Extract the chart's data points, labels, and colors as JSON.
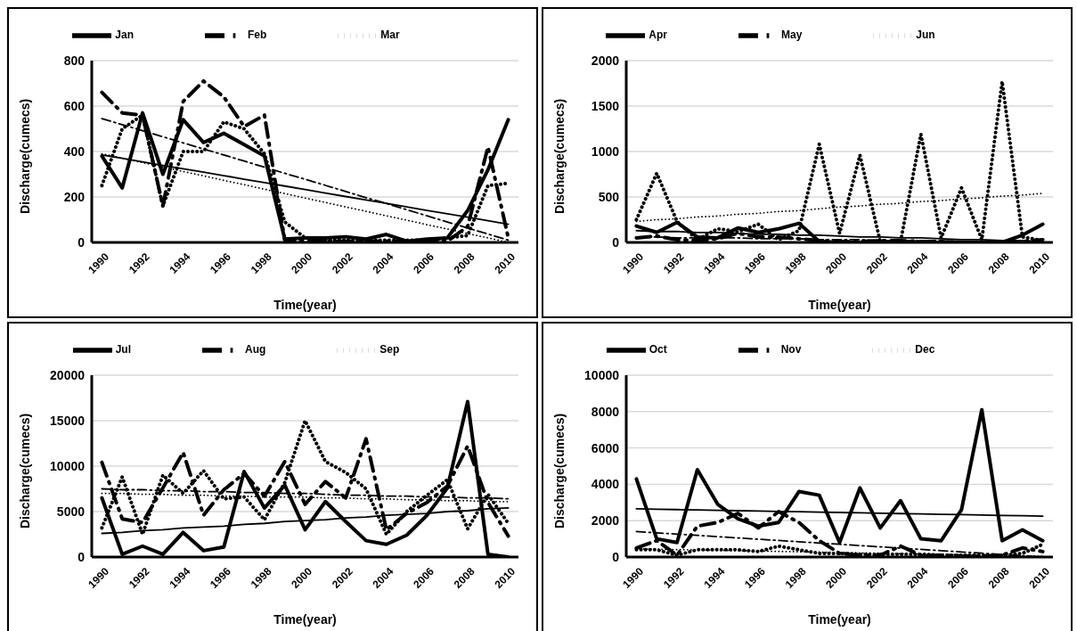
{
  "chart_data": [
    {
      "type": "line",
      "legend": "top",
      "grid": "y",
      "xlabel": "Time(year)",
      "ylabel": "Discharge(cumecs)",
      "xlim": [
        1989.5,
        2010.5
      ],
      "xticks": [
        1990,
        1992,
        1994,
        1996,
        1998,
        2000,
        2002,
        2004,
        2006,
        2008,
        2010
      ],
      "ylim": [
        0,
        800
      ],
      "yticks": [
        0,
        200,
        400,
        600,
        800
      ],
      "x": [
        1990,
        1991,
        1992,
        1993,
        1994,
        1995,
        1996,
        1997,
        1998,
        1999,
        2000,
        2001,
        2002,
        2003,
        2004,
        2005,
        2006,
        2007,
        2008,
        2009,
        2010
      ],
      "series": [
        {
          "name": "Jan",
          "color": "#000000",
          "line_style": "solid",
          "values": [
            380,
            240,
            570,
            300,
            540,
            440,
            480,
            430,
            380,
            15,
            20,
            20,
            25,
            15,
            35,
            5,
            15,
            20,
            140,
            320,
            540
          ]
        },
        {
          "name": "Feb",
          "color": "#000000",
          "line_style": "dashed",
          "values": [
            660,
            570,
            560,
            160,
            620,
            710,
            640,
            510,
            560,
            10,
            5,
            5,
            5,
            5,
            5,
            5,
            5,
            5,
            70,
            420,
            20
          ]
        },
        {
          "name": "Mar",
          "color": "#000000",
          "line_style": "dotted",
          "values": [
            250,
            500,
            560,
            160,
            400,
            400,
            530,
            500,
            390,
            90,
            20,
            10,
            10,
            10,
            10,
            10,
            10,
            20,
            30,
            250,
            260
          ]
        },
        {
          "type": "line",
          "color": "#000000",
          "line_style": "solid",
          "values": [
            385,
            370,
            354,
            339,
            324,
            309,
            294,
            278,
            263,
            248,
            233,
            217,
            202,
            187,
            172,
            156,
            141,
            126,
            111,
            96,
            80
          ]
        },
        {
          "type": "line",
          "color": "#000000",
          "line_style": "dashed",
          "values": [
            545,
            518,
            492,
            465,
            438,
            411,
            385,
            358,
            331,
            304,
            278,
            251,
            224,
            197,
            171,
            144,
            117,
            90,
            63,
            37,
            10
          ]
        },
        {
          "type": "line",
          "color": "#000000",
          "line_style": "dotted",
          "values": [
            390,
            371,
            351,
            332,
            312,
            293,
            273,
            254,
            234,
            215,
            195,
            176,
            156,
            137,
            117,
            98,
            78,
            59,
            39,
            20,
            0
          ]
        }
      ]
    },
    {
      "type": "line",
      "legend": "top",
      "grid": "y",
      "xlabel": "Time(year)",
      "ylabel": "Discharge(cumecs)",
      "xlim": [
        1989.5,
        2010.5
      ],
      "xticks": [
        1990,
        1992,
        1994,
        1996,
        1998,
        2000,
        2002,
        2004,
        2006,
        2008,
        2010
      ],
      "ylim": [
        0,
        2000
      ],
      "yticks": [
        0,
        500,
        1000,
        1500,
        2000
      ],
      "x": [
        1990,
        1991,
        1992,
        1993,
        1994,
        1995,
        1996,
        1997,
        1998,
        1999,
        2000,
        2001,
        2002,
        2003,
        2004,
        2005,
        2006,
        2007,
        2008,
        2009,
        2010
      ],
      "series": [
        {
          "name": "Apr",
          "color": "#000000",
          "line_style": "solid",
          "values": [
            180,
            110,
            220,
            60,
            50,
            160,
            110,
            150,
            210,
            10,
            0,
            0,
            0,
            0,
            0,
            0,
            0,
            0,
            0,
            80,
            200
          ]
        },
        {
          "name": "May",
          "color": "#000000",
          "line_style": "dashed",
          "values": [
            50,
            70,
            30,
            20,
            40,
            100,
            60,
            60,
            40,
            20,
            10,
            10,
            20,
            20,
            10,
            10,
            0,
            0,
            0,
            10,
            30
          ]
        },
        {
          "name": "Jun",
          "color": "#000000",
          "line_style": "dotted",
          "values": [
            250,
            760,
            230,
            30,
            150,
            120,
            200,
            30,
            130,
            1080,
            100,
            960,
            10,
            10,
            1190,
            50,
            600,
            30,
            1770,
            60,
            20
          ]
        },
        {
          "type": "line",
          "color": "#000000",
          "line_style": "solid",
          "values": [
            130,
            120,
            120,
            110,
            110,
            100,
            90,
            90,
            80,
            80,
            70,
            60,
            60,
            50,
            50,
            40,
            30,
            30,
            20,
            20,
            10
          ]
        },
        {
          "type": "line",
          "color": "#000000",
          "line_style": "dashed",
          "values": [
            60,
            60,
            50,
            50,
            50,
            50,
            40,
            40,
            40,
            30,
            30,
            30,
            20,
            20,
            20,
            20,
            10,
            10,
            10,
            0,
            0
          ]
        },
        {
          "type": "line",
          "color": "#000000",
          "line_style": "dotted",
          "values": [
            230,
            250,
            260,
            280,
            290,
            310,
            320,
            340,
            350,
            370,
            390,
            400,
            420,
            430,
            450,
            460,
            480,
            490,
            510,
            520,
            540
          ]
        }
      ]
    },
    {
      "type": "line",
      "legend": "top",
      "grid": "y",
      "xlabel": "Time(year)",
      "ylabel": "Discharge(cumecs)",
      "xlim": [
        1989.5,
        2010.5
      ],
      "xticks": [
        1990,
        1992,
        1994,
        1996,
        1998,
        2000,
        2002,
        2004,
        2006,
        2008,
        2010
      ],
      "ylim": [
        0,
        20000
      ],
      "yticks": [
        0,
        5000,
        10000,
        15000,
        20000
      ],
      "x": [
        1990,
        1991,
        1992,
        1993,
        1994,
        1995,
        1996,
        1997,
        1998,
        1999,
        2000,
        2001,
        2002,
        2003,
        2004,
        2005,
        2006,
        2007,
        2008,
        2009,
        2010
      ],
      "series": [
        {
          "name": "Jul",
          "color": "#000000",
          "line_style": "solid",
          "values": [
            6500,
            300,
            1200,
            300,
            2700,
            700,
            1100,
            9400,
            5400,
            7900,
            3000,
            6100,
            3900,
            1800,
            1400,
            2400,
            4600,
            7600,
            17100,
            300,
            0
          ]
        },
        {
          "name": "Aug",
          "color": "#000000",
          "line_style": "dashed",
          "values": [
            10400,
            4200,
            3800,
            7600,
            11500,
            4600,
            7400,
            9200,
            6700,
            10500,
            5800,
            8300,
            6500,
            13000,
            3000,
            4800,
            6000,
            7800,
            12200,
            6000,
            2300
          ]
        },
        {
          "name": "Sep",
          "color": "#000000",
          "line_style": "dotted",
          "values": [
            3200,
            8800,
            2500,
            9000,
            7000,
            9500,
            6400,
            6600,
            4100,
            8200,
            15000,
            10500,
            9300,
            7500,
            2500,
            5000,
            6800,
            8500,
            3100,
            6900,
            3700
          ]
        },
        {
          "type": "line",
          "color": "#000000",
          "line_style": "solid",
          "values": [
            2600,
            2700,
            2900,
            3000,
            3200,
            3300,
            3400,
            3600,
            3700,
            3900,
            4000,
            4100,
            4300,
            4400,
            4600,
            4700,
            4800,
            5000,
            5100,
            5300,
            5400
          ]
        },
        {
          "type": "line",
          "color": "#000000",
          "line_style": "dashed",
          "values": [
            7500,
            7400,
            7400,
            7300,
            7300,
            7200,
            7200,
            7100,
            7100,
            7000,
            7000,
            6900,
            6800,
            6800,
            6700,
            6700,
            6600,
            6600,
            6500,
            6500,
            6400
          ]
        },
        {
          "type": "line",
          "color": "#000000",
          "line_style": "dotted",
          "values": [
            7000,
            7000,
            6900,
            6900,
            6800,
            6800,
            6700,
            6700,
            6600,
            6600,
            6600,
            6500,
            6500,
            6400,
            6400,
            6300,
            6300,
            6200,
            6200,
            6100,
            6100
          ]
        }
      ]
    },
    {
      "type": "line",
      "legend": "top",
      "grid": "y",
      "xlabel": "Time(year)",
      "ylabel": "Discharge(cumecs)",
      "xlim": [
        1989.5,
        2010.5
      ],
      "xticks": [
        1990,
        1992,
        1994,
        1996,
        1998,
        2000,
        2002,
        2004,
        2006,
        2008,
        2010
      ],
      "ylim": [
        0,
        10000
      ],
      "yticks": [
        0,
        2000,
        4000,
        6000,
        8000,
        10000
      ],
      "x": [
        1990,
        1991,
        1992,
        1993,
        1994,
        1995,
        1996,
        1997,
        1998,
        1999,
        2000,
        2001,
        2002,
        2003,
        2004,
        2005,
        2006,
        2007,
        2008,
        2009,
        2010
      ],
      "series": [
        {
          "name": "Oct",
          "color": "#000000",
          "line_style": "solid",
          "values": [
            4300,
            1000,
            800,
            4800,
            2900,
            2100,
            1700,
            1900,
            3600,
            3400,
            800,
            3800,
            1600,
            3100,
            1000,
            900,
            2600,
            8100,
            900,
            1500,
            900
          ]
        },
        {
          "name": "Nov",
          "color": "#000000",
          "line_style": "dashed",
          "values": [
            500,
            900,
            100,
            1700,
            1900,
            2400,
            1600,
            2500,
            1900,
            900,
            200,
            100,
            100,
            600,
            100,
            100,
            50,
            50,
            100,
            500,
            300
          ]
        },
        {
          "name": "Dec",
          "color": "#000000",
          "line_style": "dotted",
          "values": [
            400,
            400,
            100,
            400,
            400,
            400,
            300,
            600,
            400,
            200,
            200,
            150,
            150,
            150,
            150,
            100,
            100,
            100,
            100,
            200,
            700
          ]
        },
        {
          "type": "line",
          "color": "#000000",
          "line_style": "solid",
          "values": [
            2650,
            2630,
            2610,
            2590,
            2570,
            2550,
            2530,
            2510,
            2490,
            2470,
            2450,
            2430,
            2410,
            2390,
            2370,
            2350,
            2330,
            2310,
            2290,
            2270,
            2250
          ]
        },
        {
          "type": "line",
          "color": "#000000",
          "line_style": "dashed",
          "values": [
            1400,
            1330,
            1260,
            1190,
            1120,
            1050,
            980,
            910,
            840,
            770,
            700,
            630,
            560,
            490,
            420,
            350,
            280,
            210,
            140,
            70,
            0
          ]
        },
        {
          "type": "line",
          "color": "#000000",
          "line_style": "dotted",
          "values": [
            450,
            430,
            410,
            390,
            370,
            350,
            330,
            310,
            290,
            270,
            250,
            230,
            210,
            190,
            170,
            150,
            130,
            110,
            90,
            70,
            50
          ]
        }
      ]
    }
  ]
}
